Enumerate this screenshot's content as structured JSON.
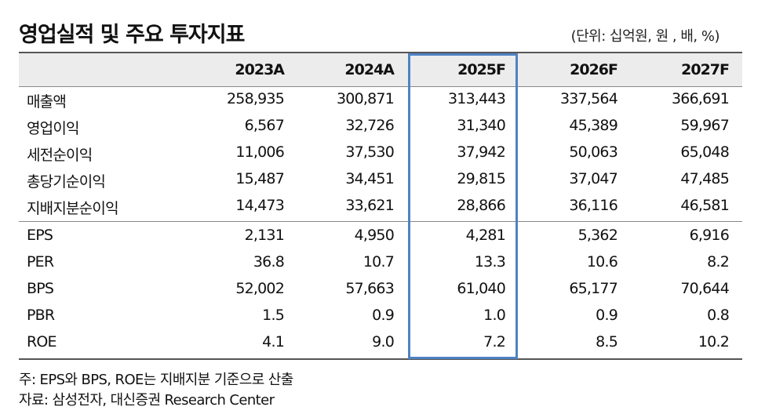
{
  "title": "영업실적 및 주요 투자지표",
  "unit": "(단위: 십억원, 원 , 배, %)",
  "columns": [
    "2023A",
    "2024A",
    "2025F",
    "2026F",
    "2027F"
  ],
  "highlight_column": "2025F",
  "rows_group1": [
    {
      "label": "매출액",
      "values": [
        "258,935",
        "300,871",
        "313,443",
        "337,564",
        "366,691"
      ]
    },
    {
      "label": "영업이익",
      "values": [
        "6,567",
        "32,726",
        "31,340",
        "45,389",
        "59,967"
      ]
    },
    {
      "label": "세전순이익",
      "values": [
        "11,006",
        "37,530",
        "37,942",
        "50,063",
        "65,048"
      ]
    },
    {
      "label": "총당기순이익",
      "values": [
        "15,487",
        "34,451",
        "29,815",
        "37,047",
        "47,485"
      ]
    },
    {
      "label": "지배지분순이익",
      "values": [
        "14,473",
        "33,621",
        "28,866",
        "36,116",
        "46,581"
      ]
    }
  ],
  "rows_group2": [
    {
      "label": "EPS",
      "values": [
        "2,131",
        "4,950",
        "4,281",
        "5,362",
        "6,916"
      ]
    },
    {
      "label": "PER",
      "values": [
        "36.8",
        "10.7",
        "13.3",
        "10.6",
        "8.2"
      ]
    },
    {
      "label": "BPS",
      "values": [
        "52,002",
        "57,663",
        "61,040",
        "65,177",
        "70,644"
      ]
    },
    {
      "label": "PBR",
      "values": [
        "1.5",
        "0.9",
        "1.0",
        "0.9",
        "0.8"
      ]
    },
    {
      "label": "ROE",
      "values": [
        "4.1",
        "9.0",
        "7.2",
        "8.5",
        "10.2"
      ]
    }
  ],
  "notes": [
    "주: EPS와 BPS, ROE는 지배지분 기준으로 산출",
    "자료: 삼성전자, 대신증권 Research Center"
  ],
  "colors": {
    "highlight": "#4f82c4",
    "header_bg": "#ececec"
  }
}
